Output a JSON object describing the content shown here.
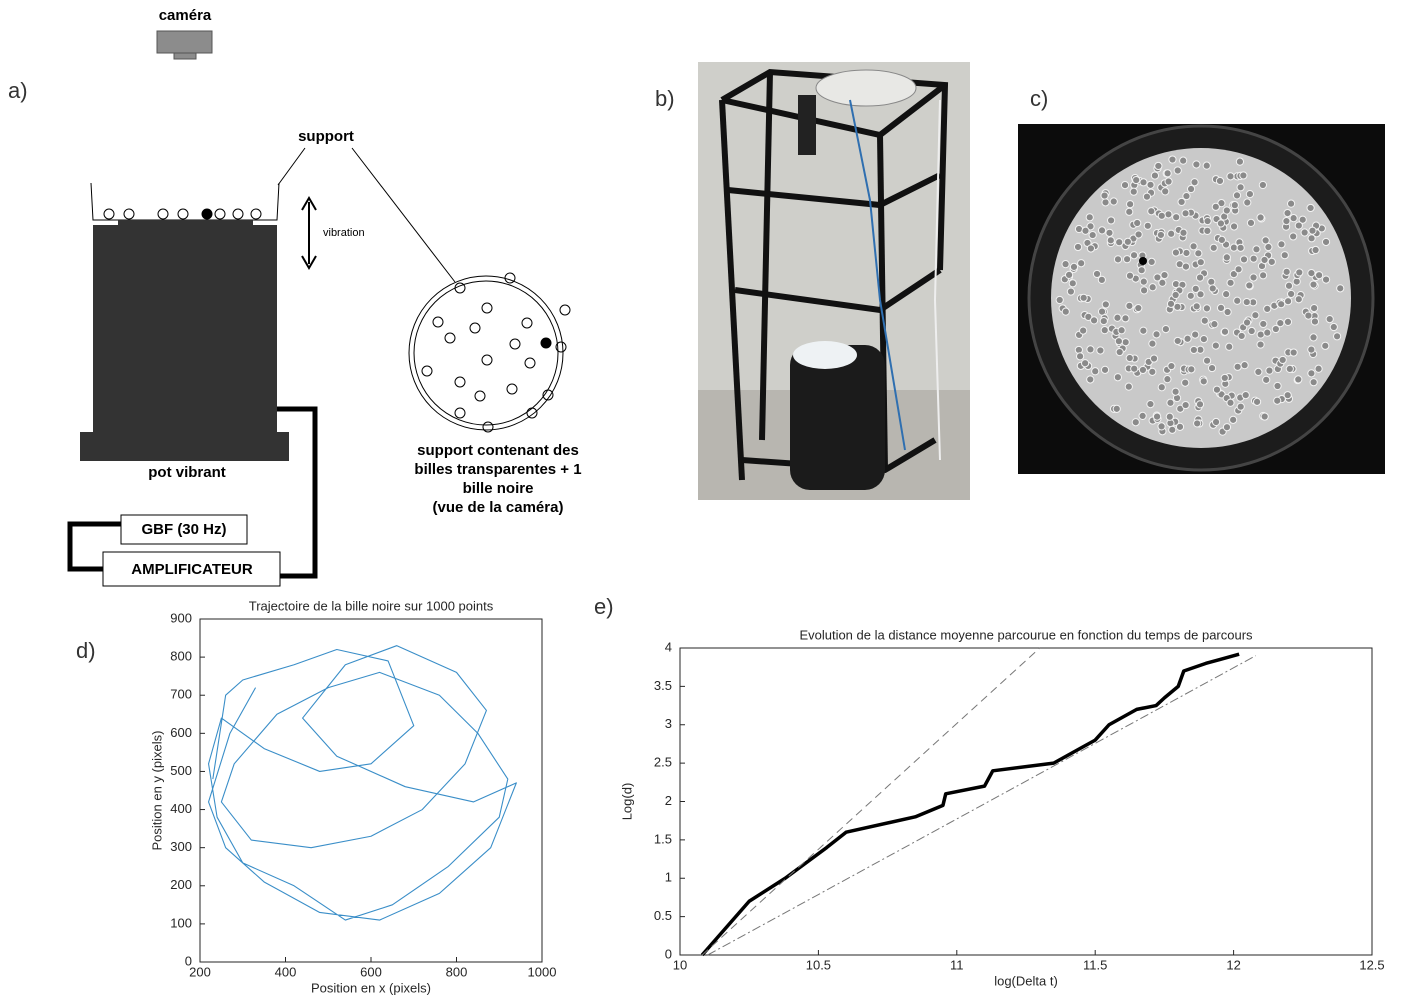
{
  "diagram": {
    "panel_labels": [
      "a)",
      "b)",
      "c)",
      "d)",
      "e)"
    ],
    "camera": "caméra",
    "support": "support",
    "vibration": "vibration",
    "shaker": "pot vibrant",
    "generator": "GBF (30 Hz)",
    "amplifier": "AMPLIFICATEUR",
    "top_view": [
      "support contenant des",
      "billes transparentes + 1",
      "bille noire",
      "(vue de la caméra)"
    ]
  },
  "chart_data": [
    {
      "type": "line",
      "title": "Trajectoire de la bille noire sur 1000 points",
      "x_label": "Position en x (pixels)",
      "y_label": "Position en y (pixels)",
      "x": [
        230,
        260,
        300,
        420,
        520,
        640,
        700,
        600,
        480,
        350,
        250,
        220,
        240,
        300,
        420,
        540,
        650,
        780,
        900,
        920,
        850,
        760,
        620,
        500,
        380,
        280,
        250,
        320,
        460,
        600,
        720,
        820,
        870,
        800,
        660,
        540,
        440,
        520,
        680,
        840,
        940,
        880,
        760,
        620,
        480,
        350,
        260,
        220,
        270,
        330
      ],
      "series": [
        {
          "color": "#3a8ec8",
          "values": [
            480,
            700,
            740,
            780,
            820,
            790,
            620,
            520,
            500,
            560,
            640,
            520,
            380,
            260,
            200,
            110,
            150,
            250,
            380,
            480,
            600,
            700,
            760,
            720,
            650,
            520,
            420,
            320,
            300,
            330,
            400,
            520,
            660,
            760,
            830,
            780,
            640,
            540,
            460,
            420,
            470,
            300,
            180,
            110,
            130,
            210,
            300,
            420,
            600,
            720
          ]
        }
      ],
      "xlim": [
        200,
        1000
      ],
      "xticks": [
        200,
        400,
        600,
        800,
        1000
      ],
      "ylim": [
        0,
        900
      ],
      "yticks": [
        0,
        100,
        200,
        300,
        400,
        500,
        600,
        700,
        800,
        900
      ]
    },
    {
      "type": "line",
      "title": "Evolution de la distance moyenne parcourue en fonction du temps de parcours",
      "x_label": "log(Delta t)",
      "y_label": "Log(d)",
      "series": [
        {
          "color": "#000000",
          "style": "solid",
          "x": [
            10.08,
            10.25,
            10.38,
            10.53,
            10.6,
            10.85,
            10.95,
            10.96,
            11.1,
            11.13,
            11.35,
            11.45,
            11.5,
            11.55,
            11.65,
            11.72,
            11.75,
            11.8,
            11.82,
            11.9,
            11.95,
            12.02
          ],
          "values": [
            0,
            0.7,
            1.0,
            1.4,
            1.6,
            1.8,
            1.95,
            2.1,
            2.2,
            2.4,
            2.5,
            2.7,
            2.8,
            3.0,
            3.2,
            3.25,
            3.35,
            3.5,
            3.7,
            3.8,
            3.85,
            3.92
          ]
        },
        {
          "color": "#777777",
          "style": "dashed",
          "x": [
            10.08,
            11.3
          ],
          "values": [
            0,
            4
          ]
        },
        {
          "color": "#777777",
          "style": "dashdot",
          "x": [
            10.1,
            12.08
          ],
          "values": [
            0,
            3.9
          ]
        }
      ],
      "xlim": [
        10,
        12.5
      ],
      "xticks": [
        10,
        10.5,
        11,
        11.5,
        12,
        12.5
      ],
      "ylim": [
        0,
        4
      ],
      "yticks": [
        0,
        0.5,
        1,
        1.5,
        2,
        2.5,
        3,
        3.5,
        4
      ]
    }
  ]
}
